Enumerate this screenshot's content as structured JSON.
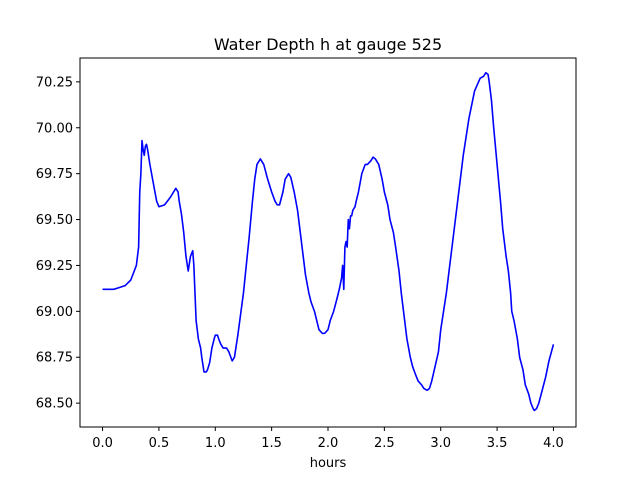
{
  "chart_data": {
    "type": "line",
    "title": "Water Depth h at gauge 525",
    "xlabel": "hours",
    "ylabel": "",
    "xlim": [
      -0.2,
      4.2
    ],
    "ylim": [
      68.37,
      70.38
    ],
    "xticks": [
      0.0,
      0.5,
      1.0,
      1.5,
      2.0,
      2.5,
      3.0,
      3.5,
      4.0
    ],
    "xtick_labels": [
      "0.0",
      "0.5",
      "1.0",
      "1.5",
      "2.0",
      "2.5",
      "3.0",
      "3.5",
      "4.0"
    ],
    "yticks": [
      68.5,
      68.75,
      69.0,
      69.25,
      69.5,
      69.75,
      70.0,
      70.25
    ],
    "ytick_labels": [
      "68.50",
      "68.75",
      "69.00",
      "69.25",
      "69.50",
      "69.75",
      "70.00",
      "70.25"
    ],
    "grid": false,
    "series": [
      {
        "color": "#0000ff",
        "x": [
          0.0,
          0.1,
          0.15,
          0.2,
          0.25,
          0.3,
          0.32,
          0.33,
          0.34,
          0.35,
          0.36,
          0.37,
          0.38,
          0.39,
          0.4,
          0.42,
          0.45,
          0.48,
          0.5,
          0.55,
          0.6,
          0.63,
          0.65,
          0.67,
          0.68,
          0.7,
          0.72,
          0.74,
          0.76,
          0.78,
          0.8,
          0.81,
          0.82,
          0.83,
          0.84,
          0.85,
          0.87,
          0.88,
          0.9,
          0.92,
          0.93,
          0.95,
          0.97,
          0.99,
          1.0,
          1.02,
          1.03,
          1.05,
          1.07,
          1.1,
          1.12,
          1.15,
          1.17,
          1.2,
          1.25,
          1.3,
          1.33,
          1.35,
          1.37,
          1.4,
          1.43,
          1.46,
          1.5,
          1.53,
          1.55,
          1.57,
          1.6,
          1.62,
          1.65,
          1.67,
          1.7,
          1.73,
          1.75,
          1.78,
          1.8,
          1.83,
          1.85,
          1.88,
          1.9,
          1.92,
          1.95,
          1.97,
          2.0,
          2.02,
          2.05,
          2.08,
          2.1,
          2.12,
          2.13,
          2.14,
          2.15,
          2.16,
          2.17,
          2.18,
          2.19,
          2.2,
          2.21,
          2.22,
          2.24,
          2.25,
          2.27,
          2.3,
          2.33,
          2.35,
          2.38,
          2.4,
          2.42,
          2.45,
          2.48,
          2.5,
          2.53,
          2.55,
          2.58,
          2.6,
          2.63,
          2.65,
          2.68,
          2.7,
          2.73,
          2.75,
          2.78,
          2.8,
          2.83,
          2.85,
          2.88,
          2.9,
          2.92,
          2.95,
          2.98,
          3.0,
          3.05,
          3.1,
          3.15,
          3.2,
          3.25,
          3.3,
          3.35,
          3.38,
          3.4,
          3.42,
          3.43,
          3.45,
          3.47,
          3.5,
          3.53,
          3.55,
          3.58,
          3.6,
          3.62,
          3.63,
          3.65,
          3.68,
          3.7,
          3.73,
          3.75,
          3.78,
          3.8,
          3.82,
          3.83,
          3.85,
          3.87,
          3.9,
          3.93,
          3.96,
          4.0
        ],
        "y": [
          69.12,
          69.12,
          69.13,
          69.14,
          69.17,
          69.25,
          69.35,
          69.65,
          69.75,
          69.93,
          69.88,
          69.85,
          69.9,
          69.91,
          69.88,
          69.8,
          69.7,
          69.6,
          69.57,
          69.58,
          69.62,
          69.65,
          69.67,
          69.65,
          69.6,
          69.53,
          69.43,
          69.3,
          69.22,
          69.3,
          69.33,
          69.25,
          69.1,
          68.95,
          68.9,
          68.85,
          68.8,
          68.75,
          68.67,
          68.67,
          68.68,
          68.72,
          68.8,
          68.85,
          68.87,
          68.87,
          68.85,
          68.82,
          68.8,
          68.8,
          68.78,
          68.73,
          68.75,
          68.87,
          69.1,
          69.4,
          69.6,
          69.72,
          69.8,
          69.83,
          69.8,
          69.73,
          69.65,
          69.6,
          69.58,
          69.58,
          69.65,
          69.72,
          69.75,
          69.73,
          69.65,
          69.55,
          69.45,
          69.3,
          69.2,
          69.1,
          69.05,
          69.0,
          68.95,
          68.9,
          68.88,
          68.88,
          68.9,
          68.95,
          69.0,
          69.07,
          69.12,
          69.18,
          69.25,
          69.12,
          69.35,
          69.38,
          69.35,
          69.5,
          69.45,
          69.52,
          69.52,
          69.55,
          69.57,
          69.6,
          69.65,
          69.75,
          69.8,
          69.8,
          69.82,
          69.84,
          69.83,
          69.8,
          69.72,
          69.65,
          69.58,
          69.5,
          69.43,
          69.35,
          69.22,
          69.1,
          68.95,
          68.85,
          68.75,
          68.7,
          68.65,
          68.62,
          68.6,
          68.58,
          68.57,
          68.58,
          68.62,
          68.7,
          68.78,
          68.9,
          69.1,
          69.35,
          69.6,
          69.85,
          70.05,
          70.2,
          70.27,
          70.28,
          70.3,
          70.29,
          70.25,
          70.15,
          70.0,
          69.8,
          69.6,
          69.45,
          69.3,
          69.22,
          69.1,
          69.0,
          68.95,
          68.85,
          68.75,
          68.68,
          68.6,
          68.55,
          68.5,
          68.47,
          68.46,
          68.47,
          68.5,
          68.57,
          68.64,
          68.73,
          68.82
        ]
      }
    ]
  }
}
